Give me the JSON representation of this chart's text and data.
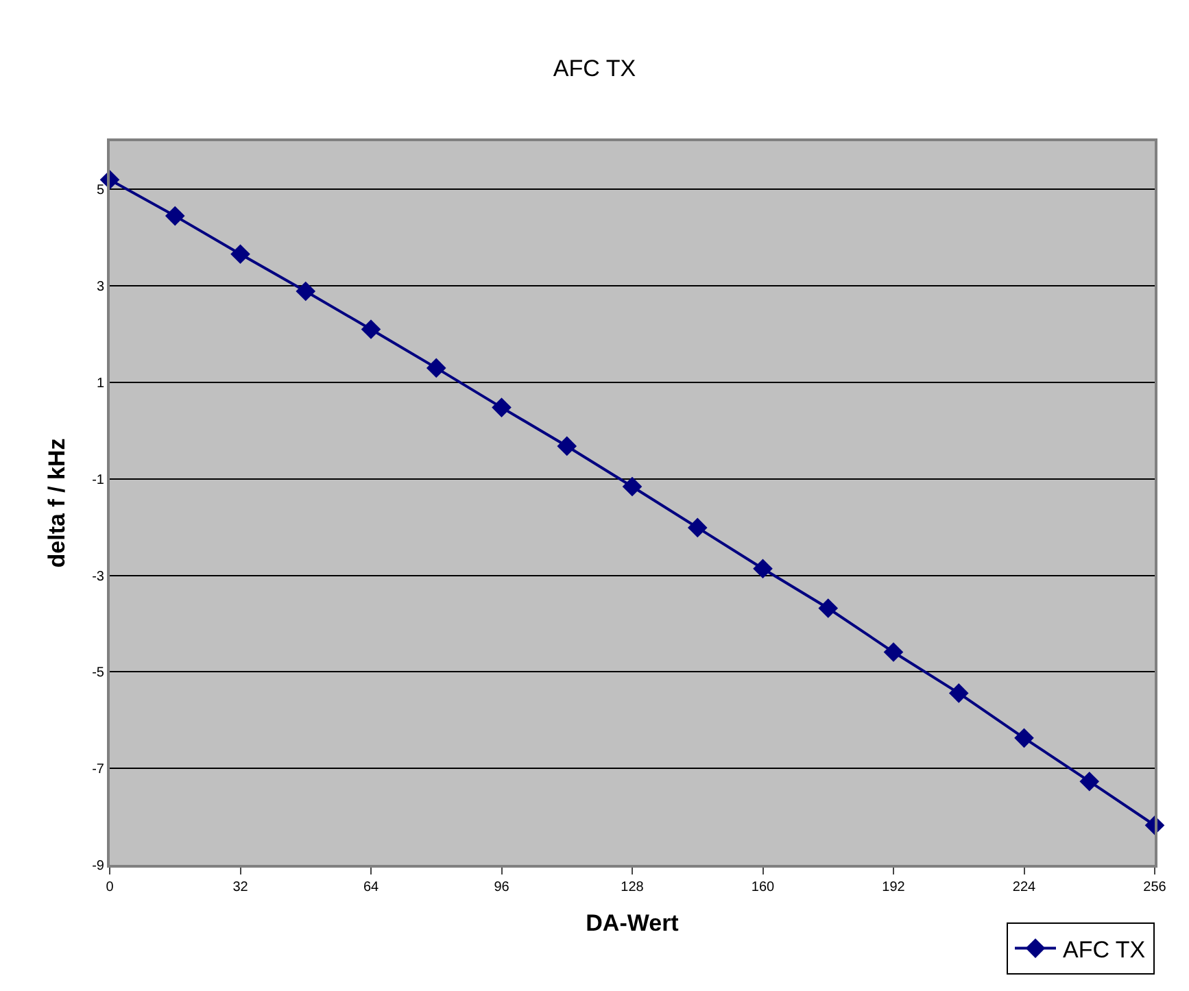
{
  "chart_data": {
    "type": "line",
    "title": "AFC TX",
    "xlabel": "DA-Wert",
    "ylabel": "delta f / kHz",
    "x": [
      0,
      16,
      32,
      48,
      64,
      80,
      96,
      112,
      128,
      144,
      160,
      176,
      192,
      208,
      224,
      240,
      256
    ],
    "series": [
      {
        "name": "AFC TX",
        "color": "#000080",
        "values": [
          5.2,
          4.45,
          3.66,
          2.89,
          2.1,
          1.3,
          0.48,
          -0.32,
          -1.16,
          -2.01,
          -2.86,
          -3.68,
          -4.59,
          -5.44,
          -6.37,
          -7.27,
          -8.18
        ]
      }
    ],
    "xlim": [
      0,
      256
    ],
    "xticks": [
      0,
      32,
      64,
      96,
      128,
      160,
      192,
      224,
      256
    ],
    "ylim": [
      -9,
      6
    ],
    "yticks": [
      -9,
      -7,
      -5,
      -3,
      -1,
      1,
      3,
      5
    ],
    "grid": "y",
    "legend": "bottom right",
    "marker": "diamond",
    "line_style": "solid"
  }
}
